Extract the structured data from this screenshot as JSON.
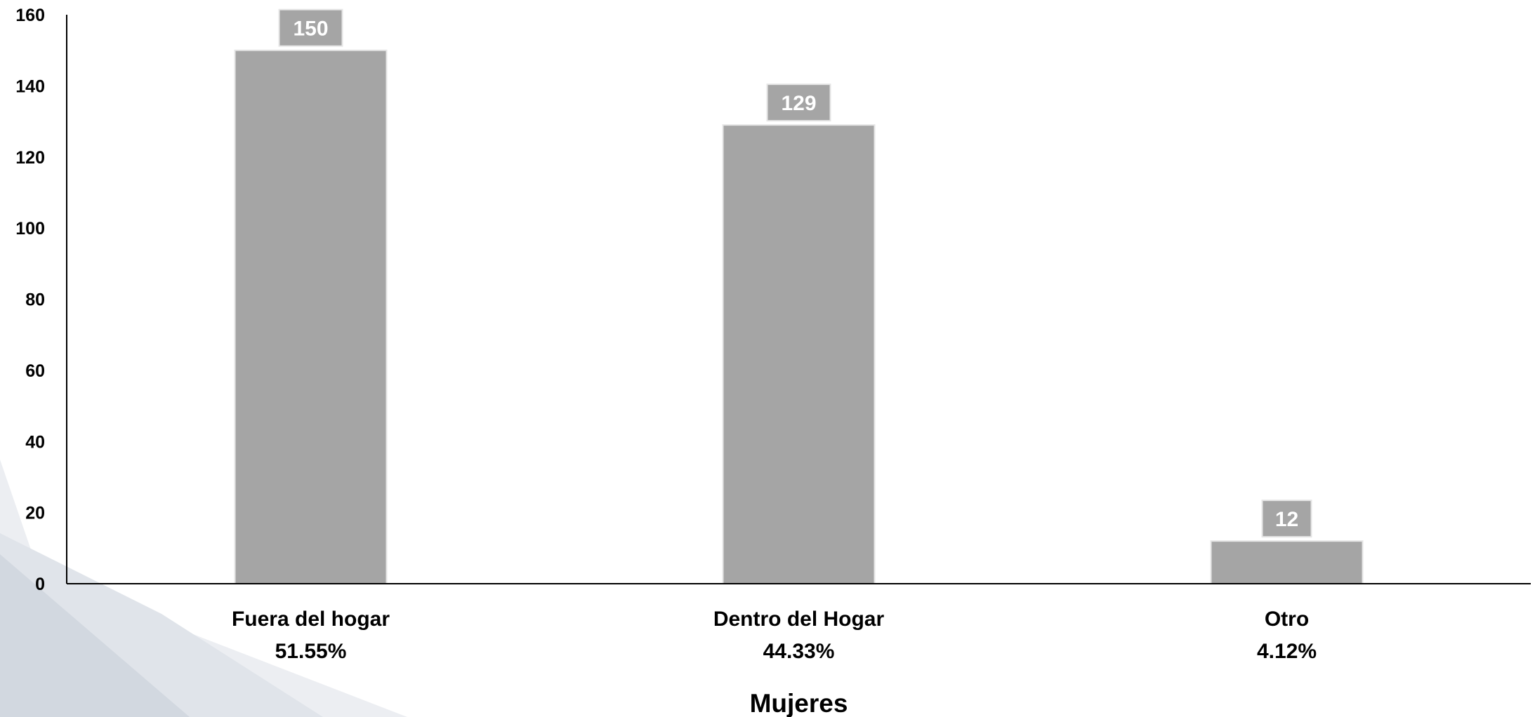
{
  "chart_data": {
    "type": "bar",
    "categories": [
      "Fuera del hogar",
      "Dentro del Hogar",
      "Otro"
    ],
    "category_percentages": [
      "51.55%",
      "44.33%",
      "4.12%"
    ],
    "values": [
      150,
      129,
      12
    ],
    "data_labels": [
      "150",
      "129",
      "12"
    ],
    "title": "",
    "xlabel": "Mujeres",
    "ylabel": "",
    "ylim": [
      0,
      160
    ],
    "yticks": [
      0,
      20,
      40,
      60,
      80,
      100,
      120,
      140,
      160
    ],
    "grid": false,
    "legend": "none",
    "colors": {
      "bar": "#a5a5a5",
      "bar_edge": "#e6e6e6",
      "label_box": "#a5a5a5",
      "label_text": "#ffffff",
      "axis": "#000000",
      "background_shape_light": "#eceef2",
      "background_shape_dark": "#d6dbe2"
    }
  }
}
